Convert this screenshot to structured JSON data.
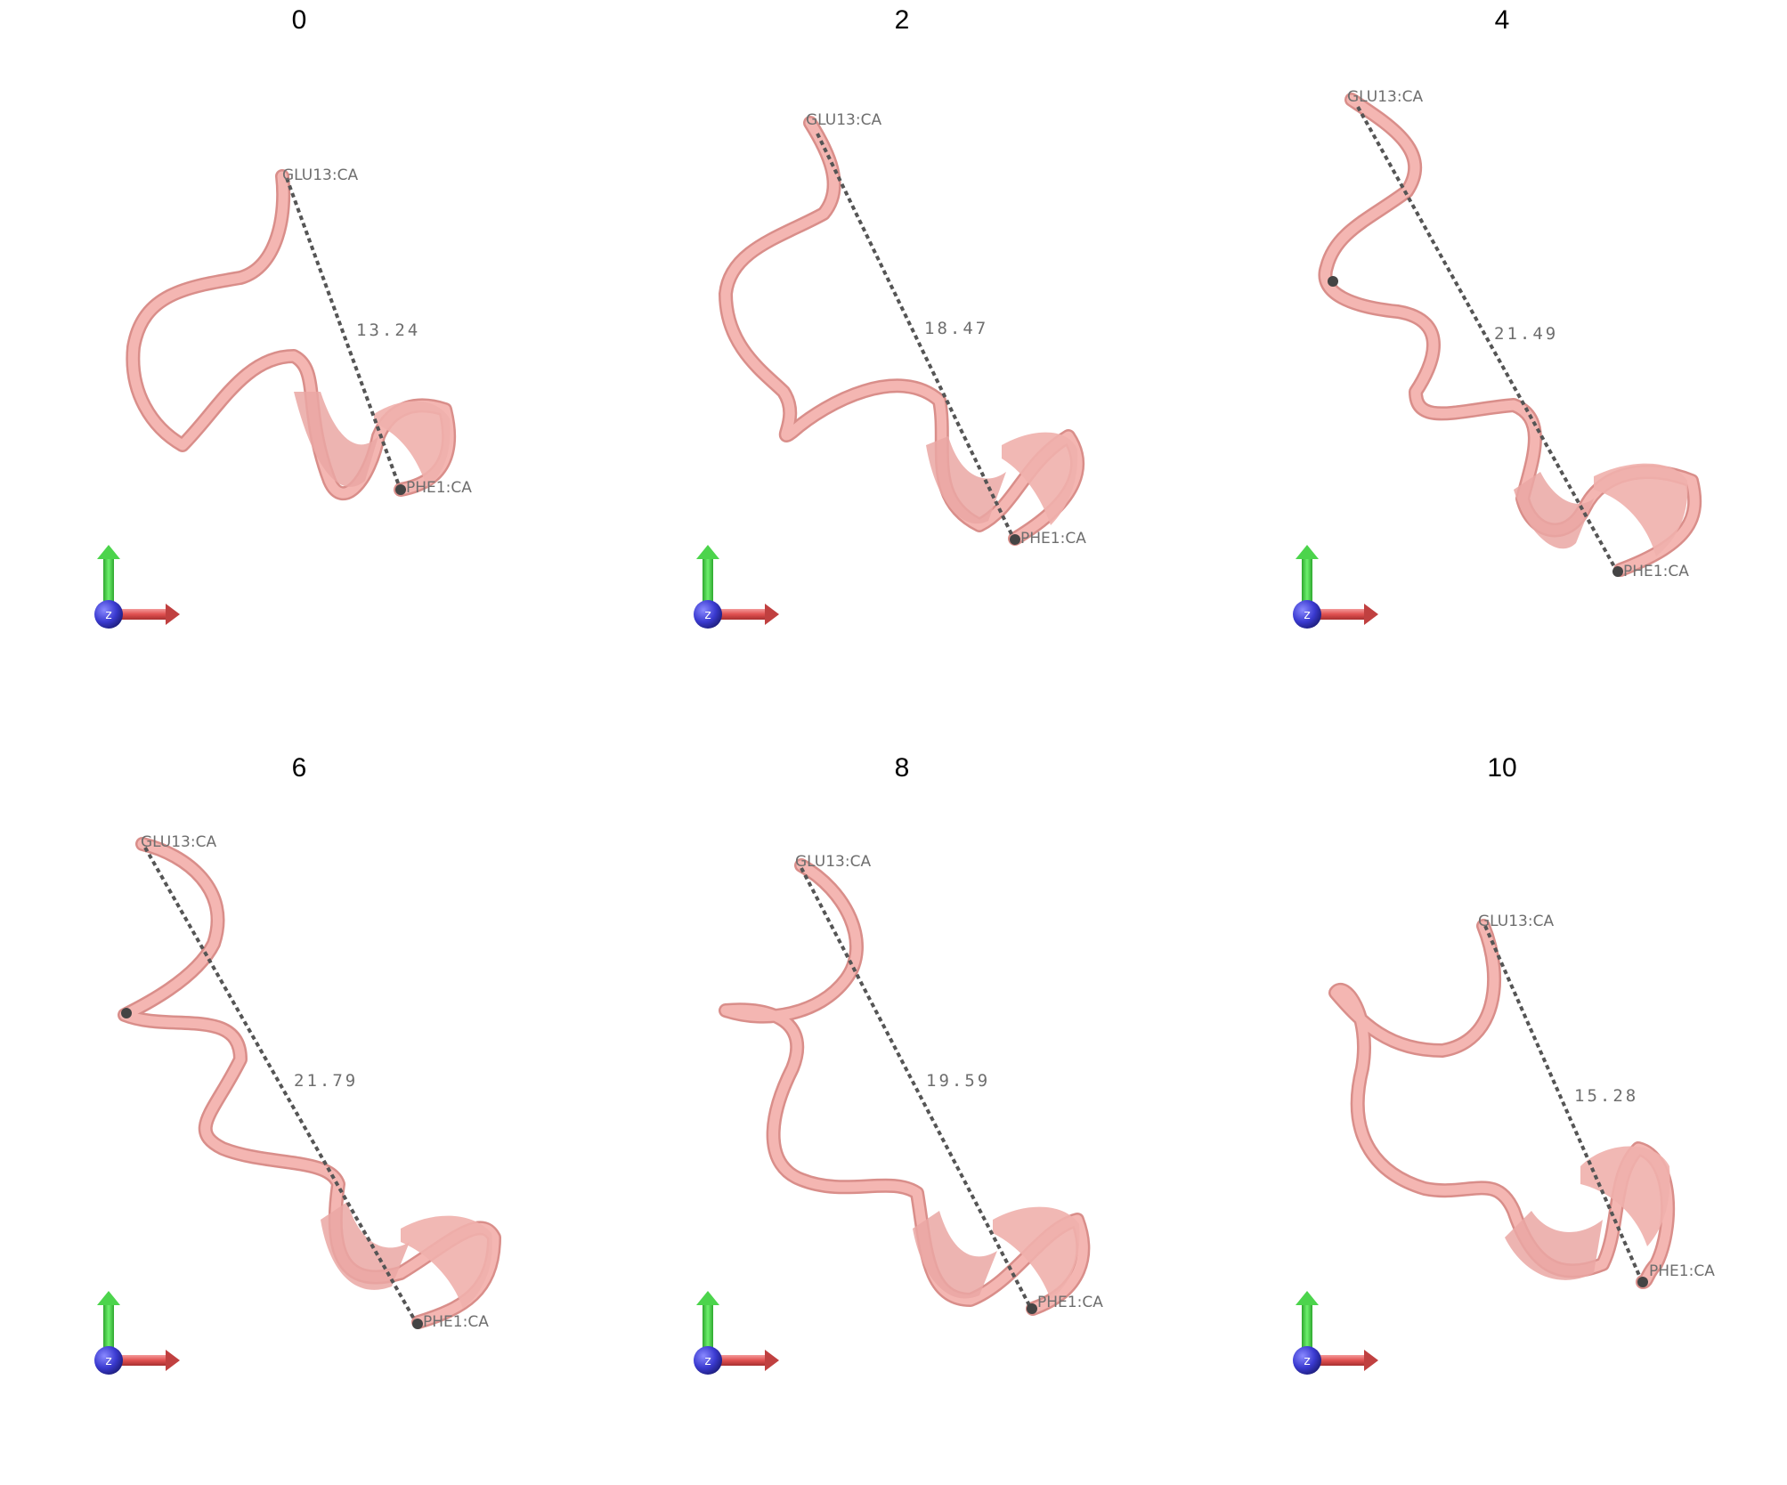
{
  "figure": {
    "ribbon_color": "#f4b6b2",
    "ribbon_shadow": "#d98e8a",
    "bond_color": "#555555",
    "label_color": "#6e6e6e",
    "axes": {
      "x_color": "#e05050",
      "y_color": "#3fd13f",
      "z_color": "#3a3ad0",
      "z_label": "z"
    }
  },
  "panels": [
    {
      "title": "0",
      "start_label": "GLU13:CA",
      "end_label": "PHE1:CA",
      "distance": "13.24"
    },
    {
      "title": "2",
      "start_label": "GLU13:CA",
      "end_label": "PHE1:CA",
      "distance": "18.47"
    },
    {
      "title": "4",
      "start_label": "GLU13:CA",
      "end_label": "PHE1:CA",
      "distance": "21.49"
    },
    {
      "title": "6",
      "start_label": "GLU13:CA",
      "end_label": "PHE1:CA",
      "distance": "21.79"
    },
    {
      "title": "8",
      "start_label": "GLU13:CA",
      "end_label": "PHE1:CA",
      "distance": "19.59"
    },
    {
      "title": "10",
      "start_label": "GLU13:CA",
      "end_label": "PHE1:CA",
      "distance": "15.28"
    }
  ]
}
